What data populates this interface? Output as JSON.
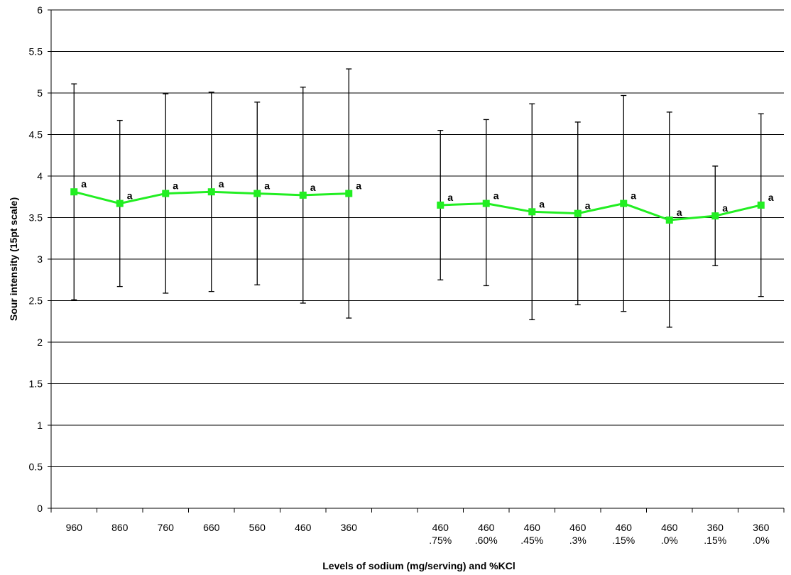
{
  "chart_data": {
    "type": "line",
    "xlabel": "Levels of sodium (mg/serving) and %KCl",
    "ylabel": "Sour intensity (15pt scale)",
    "ylim": [
      0,
      6
    ],
    "yticks": [
      "0",
      "0.5",
      "1",
      "1.5",
      "2",
      "2.5",
      "3",
      "3.5",
      "4",
      "4.5",
      "5",
      "5.5",
      "6"
    ],
    "grid": true,
    "categories": [
      [
        "960",
        ""
      ],
      [
        "860",
        ""
      ],
      [
        "760",
        ""
      ],
      [
        "660",
        ""
      ],
      [
        "560",
        ""
      ],
      [
        "460",
        ""
      ],
      [
        "360",
        ""
      ],
      [
        "",
        ""
      ],
      [
        "460",
        ".75%"
      ],
      [
        "460",
        ".60%"
      ],
      [
        "460",
        ".45%"
      ],
      [
        "460",
        ".3%"
      ],
      [
        "460",
        ".15%"
      ],
      [
        "460",
        ".0%"
      ],
      [
        "360",
        ".15%"
      ],
      [
        "360",
        ".0%"
      ]
    ],
    "series": [
      {
        "color": "#22ee22",
        "marker": "square",
        "values": [
          3.81,
          3.67,
          3.79,
          3.81,
          3.79,
          3.77,
          3.79,
          null,
          3.65,
          3.67,
          3.57,
          3.55,
          3.67,
          3.47,
          3.52,
          3.65
        ],
        "error_low": [
          2.51,
          2.67,
          2.59,
          2.61,
          2.69,
          2.47,
          2.29,
          null,
          2.75,
          2.68,
          2.27,
          2.45,
          2.37,
          2.18,
          2.92,
          2.55
        ],
        "error_high": [
          5.11,
          4.67,
          4.99,
          5.01,
          4.89,
          5.07,
          5.29,
          null,
          4.55,
          4.68,
          4.87,
          4.65,
          4.97,
          4.77,
          4.12,
          4.75
        ],
        "significance": [
          "a",
          "a",
          "a",
          "a",
          "a",
          "a",
          "a",
          null,
          "a",
          "a",
          "a",
          "a",
          "a",
          "a",
          "a",
          "a"
        ]
      }
    ]
  }
}
